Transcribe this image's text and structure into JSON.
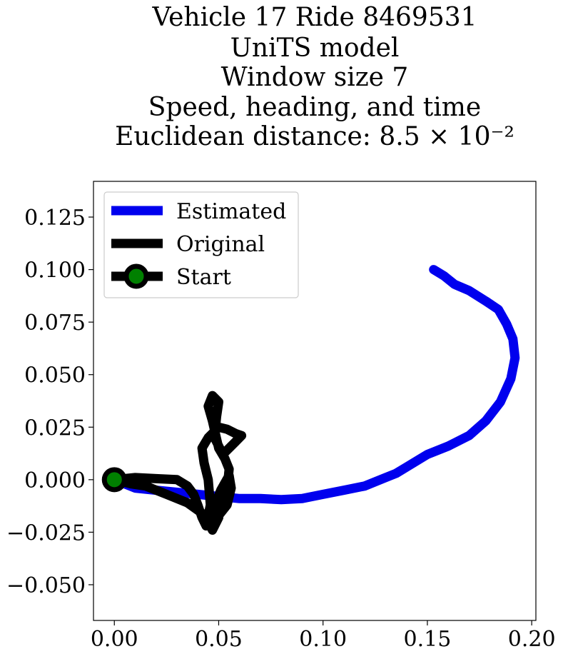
{
  "chart_data": {
    "type": "line",
    "title_lines": [
      "Vehicle 17 Ride 8469531",
      "UniTS model",
      "Window size 7",
      "Speed, heading, and time",
      "Euclidean distance: 8.5 × 10⁻²"
    ],
    "xlabel": "",
    "ylabel": "",
    "xlim": [
      -0.01,
      0.202
    ],
    "ylim": [
      -0.067,
      0.142
    ],
    "x_ticks": [
      0.0,
      0.05,
      0.1,
      0.15,
      0.2
    ],
    "x_tick_labels": [
      "0.00",
      "0.05",
      "0.10",
      "0.15",
      "0.20"
    ],
    "y_ticks": [
      -0.05,
      -0.025,
      0.0,
      0.025,
      0.05,
      0.075,
      0.1,
      0.125
    ],
    "y_tick_labels": [
      "−0.050",
      "−0.025",
      "0.000",
      "0.025",
      "0.050",
      "0.075",
      "0.100",
      "0.125"
    ],
    "grid": false,
    "legend_position": "upper-left",
    "series": [
      {
        "name": "Estimated",
        "color": "#0000ee",
        "x": [
          0.0,
          0.01,
          0.02,
          0.03,
          0.04,
          0.05,
          0.06,
          0.07,
          0.08,
          0.09,
          0.1,
          0.11,
          0.12,
          0.13,
          0.135,
          0.14,
          0.15,
          0.16,
          0.17,
          0.178,
          0.185,
          0.19,
          0.192,
          0.191,
          0.188,
          0.184,
          0.178,
          0.17,
          0.163,
          0.158,
          0.153
        ],
        "y": [
          0.0,
          -0.004,
          -0.005,
          -0.006,
          -0.007,
          -0.008,
          -0.009,
          -0.009,
          -0.0095,
          -0.009,
          -0.007,
          -0.005,
          -0.003,
          0.001,
          0.003,
          0.006,
          0.012,
          0.016,
          0.021,
          0.028,
          0.037,
          0.048,
          0.058,
          0.067,
          0.074,
          0.081,
          0.085,
          0.09,
          0.093,
          0.097,
          0.1
        ]
      },
      {
        "name": "Original",
        "color": "#000000",
        "x": [
          0.0,
          0.01,
          0.02,
          0.03,
          0.035,
          0.038,
          0.04,
          0.042,
          0.044,
          0.046,
          0.045,
          0.043,
          0.042,
          0.045,
          0.05,
          0.054,
          0.058,
          0.061,
          0.058,
          0.052,
          0.048,
          0.049,
          0.05,
          0.047,
          0.045,
          0.047,
          0.05,
          0.053,
          0.055,
          0.054,
          0.05,
          0.046,
          0.044,
          0.046,
          0.05,
          0.054,
          0.056,
          0.055,
          0.051,
          0.047,
          0.045,
          0.047,
          0.05,
          0.048,
          0.046,
          0.046,
          0.042,
          0.035,
          0.025,
          0.015,
          0.008,
          0.004,
          0.0
        ],
        "y": [
          0.0,
          0.001,
          0.0005,
          0.0,
          -0.003,
          -0.007,
          -0.012,
          -0.018,
          -0.022,
          -0.012,
          0.0,
          0.008,
          0.015,
          0.02,
          0.025,
          0.024,
          0.022,
          0.021,
          0.018,
          0.012,
          0.02,
          0.03,
          0.037,
          0.04,
          0.035,
          0.028,
          0.015,
          0.01,
          0.005,
          -0.005,
          -0.012,
          -0.018,
          -0.02,
          -0.02,
          -0.017,
          -0.012,
          -0.004,
          0.002,
          -0.005,
          -0.015,
          -0.02,
          -0.024,
          -0.018,
          -0.012,
          -0.02,
          -0.019,
          -0.016,
          -0.011,
          -0.007,
          -0.003,
          -0.002,
          -0.001,
          0.0
        ]
      }
    ],
    "start": {
      "name": "Start",
      "x": 0.0,
      "y": 0.0,
      "marker_color": "#008000",
      "line_color": "#000000"
    }
  }
}
